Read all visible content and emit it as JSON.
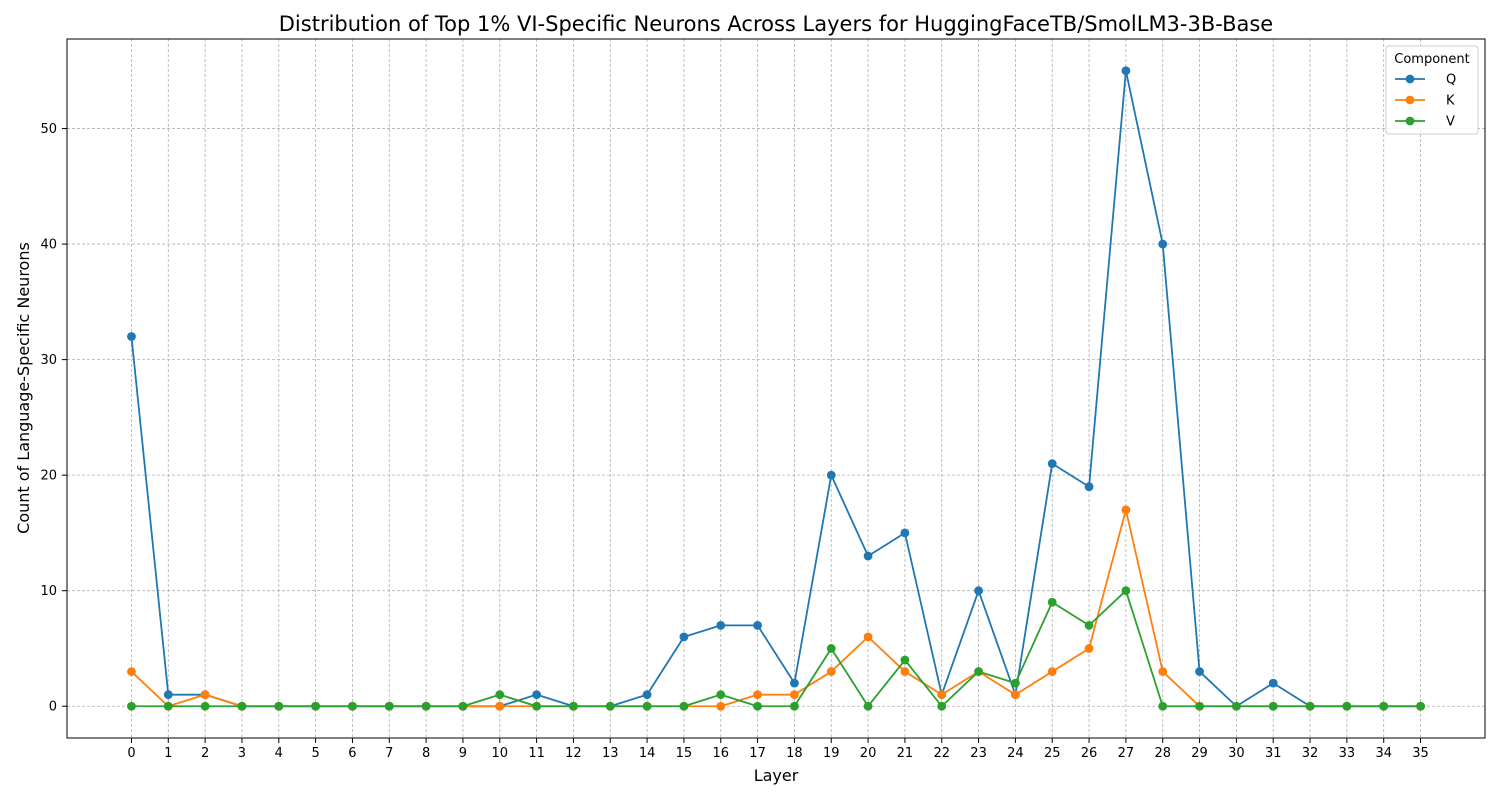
{
  "chart_data": {
    "type": "line",
    "title": "Distribution of Top 1% VI-Specific Neurons Across Layers for HuggingFaceTB/SmolLM3-3B-Base",
    "xlabel": "Layer",
    "ylabel": "Count of Language-Specific Neurons",
    "x": [
      0,
      1,
      2,
      3,
      4,
      5,
      6,
      7,
      8,
      9,
      10,
      11,
      12,
      13,
      14,
      15,
      16,
      17,
      18,
      19,
      20,
      21,
      22,
      23,
      24,
      25,
      26,
      27,
      28,
      29,
      30,
      31,
      32,
      33,
      34,
      35
    ],
    "xlim": [
      -1.75,
      36.75
    ],
    "ylim": [
      -2.75,
      57.75
    ],
    "yticks": [
      0,
      10,
      20,
      30,
      40,
      50
    ],
    "grid": true,
    "legend": {
      "title": "Component",
      "position": "top-right"
    },
    "series": [
      {
        "name": "Q",
        "color": "#1f77b4",
        "values": [
          32,
          1,
          1,
          0,
          0,
          0,
          0,
          0,
          0,
          0,
          0,
          1,
          0,
          0,
          1,
          6,
          7,
          7,
          2,
          20,
          13,
          15,
          1,
          10,
          1,
          21,
          19,
          55,
          40,
          3,
          0,
          2,
          0,
          0,
          0,
          0
        ]
      },
      {
        "name": "K",
        "color": "#ff7f0e",
        "values": [
          3,
          0,
          1,
          0,
          0,
          0,
          0,
          0,
          0,
          0,
          0,
          0,
          0,
          0,
          0,
          0,
          0,
          1,
          1,
          3,
          6,
          3,
          1,
          3,
          1,
          3,
          5,
          17,
          3,
          0,
          0,
          0,
          0,
          0,
          0,
          0
        ]
      },
      {
        "name": "V",
        "color": "#2ca02c",
        "values": [
          0,
          0,
          0,
          0,
          0,
          0,
          0,
          0,
          0,
          0,
          1,
          0,
          0,
          0,
          0,
          0,
          1,
          0,
          0,
          5,
          0,
          4,
          0,
          3,
          2,
          9,
          7,
          10,
          0,
          0,
          0,
          0,
          0,
          0,
          0,
          0
        ]
      }
    ]
  }
}
